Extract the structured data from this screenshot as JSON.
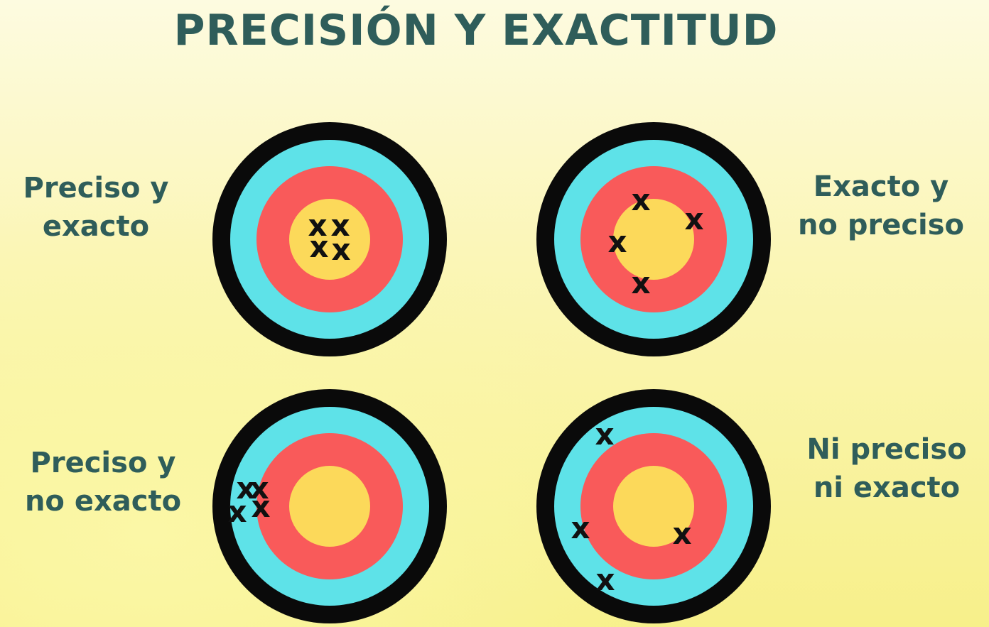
{
  "title": "PRECISIÓN Y EXACTITUD",
  "labels": {
    "top_left": [
      "Preciso y",
      "exacto"
    ],
    "top_right": [
      "Exacto y",
      "no preciso"
    ],
    "bottom_left": [
      "Preciso y",
      "no exacto"
    ],
    "bottom_right": [
      "Ni preciso",
      "ni exacto"
    ]
  },
  "marker": "x",
  "colors": {
    "title": "#2f5d5a",
    "ring_outer": "#0a0a0a",
    "ring_blue": "#5ee2e8",
    "ring_red": "#f95a5a",
    "ring_center": "#fcd95a"
  }
}
